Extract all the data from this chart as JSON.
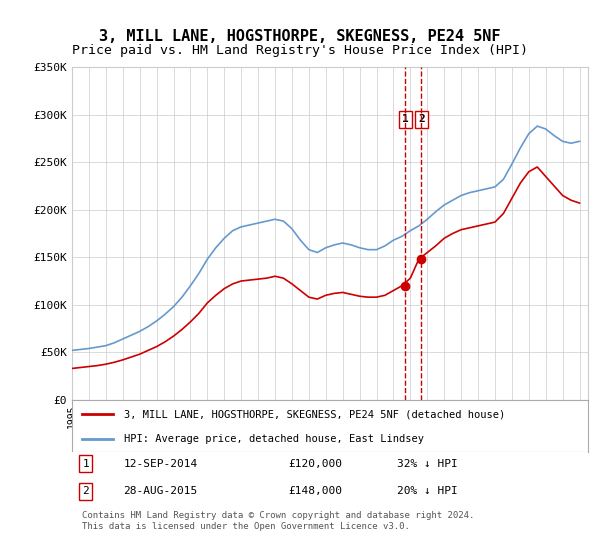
{
  "title": "3, MILL LANE, HOGSTHORPE, SKEGNESS, PE24 5NF",
  "subtitle": "Price paid vs. HM Land Registry's House Price Index (HPI)",
  "title_fontsize": 11,
  "subtitle_fontsize": 9.5,
  "ylabel_ticks": [
    "£0",
    "£50K",
    "£100K",
    "£150K",
    "£200K",
    "£250K",
    "£300K",
    "£350K"
  ],
  "ylim": [
    0,
    350000
  ],
  "xlim_start": 1995.0,
  "xlim_end": 2025.5,
  "legend_line1": "3, MILL LANE, HOGSTHORPE, SKEGNESS, PE24 5NF (detached house)",
  "legend_line2": "HPI: Average price, detached house, East Lindsey",
  "annotation1_num": "1",
  "annotation1_date": "12-SEP-2014",
  "annotation1_price": "£120,000",
  "annotation1_hpi": "32% ↓ HPI",
  "annotation2_num": "2",
  "annotation2_date": "28-AUG-2015",
  "annotation2_price": "£148,000",
  "annotation2_hpi": "20% ↓ HPI",
  "footer": "Contains HM Land Registry data © Crown copyright and database right 2024.\nThis data is licensed under the Open Government Licence v3.0.",
  "sale1_year": 2014.7,
  "sale2_year": 2015.65,
  "sale1_price": 120000,
  "sale2_price": 148000,
  "red_color": "#cc0000",
  "blue_color": "#6699cc",
  "hpi_years": [
    1995,
    1995.5,
    1996,
    1996.5,
    1997,
    1997.5,
    1998,
    1998.5,
    1999,
    1999.5,
    2000,
    2000.5,
    2001,
    2001.5,
    2002,
    2002.5,
    2003,
    2003.5,
    2004,
    2004.5,
    2005,
    2005.5,
    2006,
    2006.5,
    2007,
    2007.5,
    2008,
    2008.5,
    2009,
    2009.5,
    2010,
    2010.5,
    2011,
    2011.5,
    2012,
    2012.5,
    2013,
    2013.5,
    2014,
    2014.5,
    2015,
    2015.5,
    2016,
    2016.5,
    2017,
    2017.5,
    2018,
    2018.5,
    2019,
    2019.5,
    2020,
    2020.5,
    2021,
    2021.5,
    2022,
    2022.5,
    2023,
    2023.5,
    2024,
    2024.5,
    2025
  ],
  "hpi_values": [
    52000,
    53000,
    54000,
    55500,
    57000,
    60000,
    64000,
    68000,
    72000,
    77000,
    83000,
    90000,
    98000,
    108000,
    120000,
    133000,
    148000,
    160000,
    170000,
    178000,
    182000,
    184000,
    186000,
    188000,
    190000,
    188000,
    180000,
    168000,
    158000,
    155000,
    160000,
    163000,
    165000,
    163000,
    160000,
    158000,
    158000,
    162000,
    168000,
    172000,
    178000,
    183000,
    190000,
    198000,
    205000,
    210000,
    215000,
    218000,
    220000,
    222000,
    224000,
    232000,
    248000,
    265000,
    280000,
    288000,
    285000,
    278000,
    272000,
    270000,
    272000
  ],
  "price_years": [
    1995,
    1995.5,
    1996,
    1996.5,
    1997,
    1997.5,
    1998,
    1998.5,
    1999,
    1999.5,
    2000,
    2000.5,
    2001,
    2001.5,
    2002,
    2002.5,
    2003,
    2003.5,
    2004,
    2004.5,
    2005,
    2005.5,
    2006,
    2006.5,
    2007,
    2007.5,
    2008,
    2008.5,
    2009,
    2009.5,
    2010,
    2010.5,
    2011,
    2011.5,
    2012,
    2012.5,
    2013,
    2013.5,
    2014,
    2014.5,
    2015,
    2015.5,
    2016,
    2016.5,
    2017,
    2017.5,
    2018,
    2018.5,
    2019,
    2019.5,
    2020,
    2020.5,
    2021,
    2021.5,
    2022,
    2022.5,
    2023,
    2023.5,
    2024,
    2024.5,
    2025
  ],
  "price_values": [
    33000,
    34000,
    35000,
    36000,
    37500,
    39500,
    42000,
    45000,
    48000,
    52000,
    56000,
    61000,
    67000,
    74000,
    82000,
    91000,
    102000,
    110000,
    117000,
    122000,
    125000,
    126000,
    127000,
    128000,
    130000,
    128000,
    122000,
    115000,
    108000,
    106000,
    110000,
    112000,
    113000,
    111000,
    109000,
    108000,
    108000,
    110000,
    115000,
    120000,
    128000,
    148000,
    155000,
    162000,
    170000,
    175000,
    179000,
    181000,
    183000,
    185000,
    187000,
    196000,
    212000,
    228000,
    240000,
    245000,
    235000,
    225000,
    215000,
    210000,
    207000
  ]
}
